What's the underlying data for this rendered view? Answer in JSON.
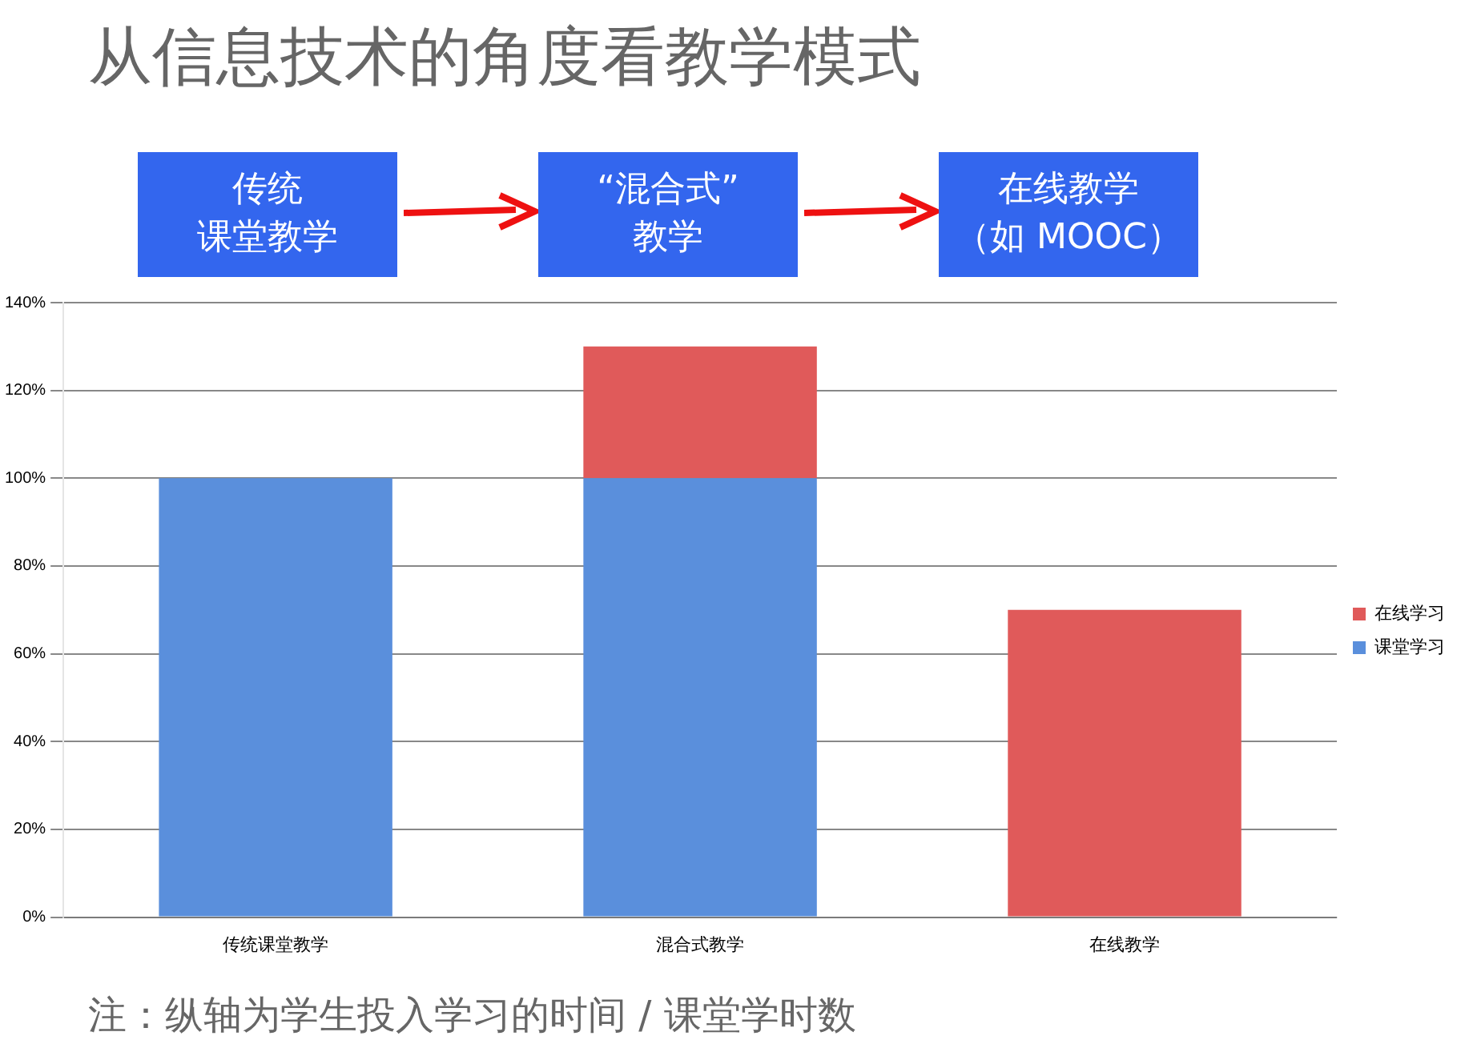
{
  "chart_data": {
    "type": "bar",
    "title": "从信息技术的角度看教学模式",
    "categories": [
      "传统课堂教学",
      "混合式教学",
      "在线教学"
    ],
    "stacked": true,
    "series": [
      {
        "name": "课堂学习",
        "color": "#5a8fdc",
        "values": [
          100,
          100,
          0
        ]
      },
      {
        "name": "在线学习",
        "color": "#e05a5a",
        "values": [
          0,
          30,
          70
        ]
      }
    ],
    "ylim": [
      0,
      140
    ],
    "yticks": [
      {
        "value": 0,
        "label": "0%"
      },
      {
        "value": 20,
        "label": "20%"
      },
      {
        "value": 40,
        "label": "40%"
      },
      {
        "value": 60,
        "label": "60%"
      },
      {
        "value": 80,
        "label": "80%"
      },
      {
        "value": 100,
        "label": "100%"
      },
      {
        "value": 120,
        "label": "120%"
      },
      {
        "value": 140,
        "label": "140%"
      }
    ],
    "grid": "y",
    "legend": "right",
    "annotations": [
      "传统",
      "课堂教学",
      "“混合式”",
      "教学",
      "在线教学",
      "（如 MOOC）",
      "注：纵轴为学生投入学习的时间 / 课堂学时数"
    ]
  }
}
